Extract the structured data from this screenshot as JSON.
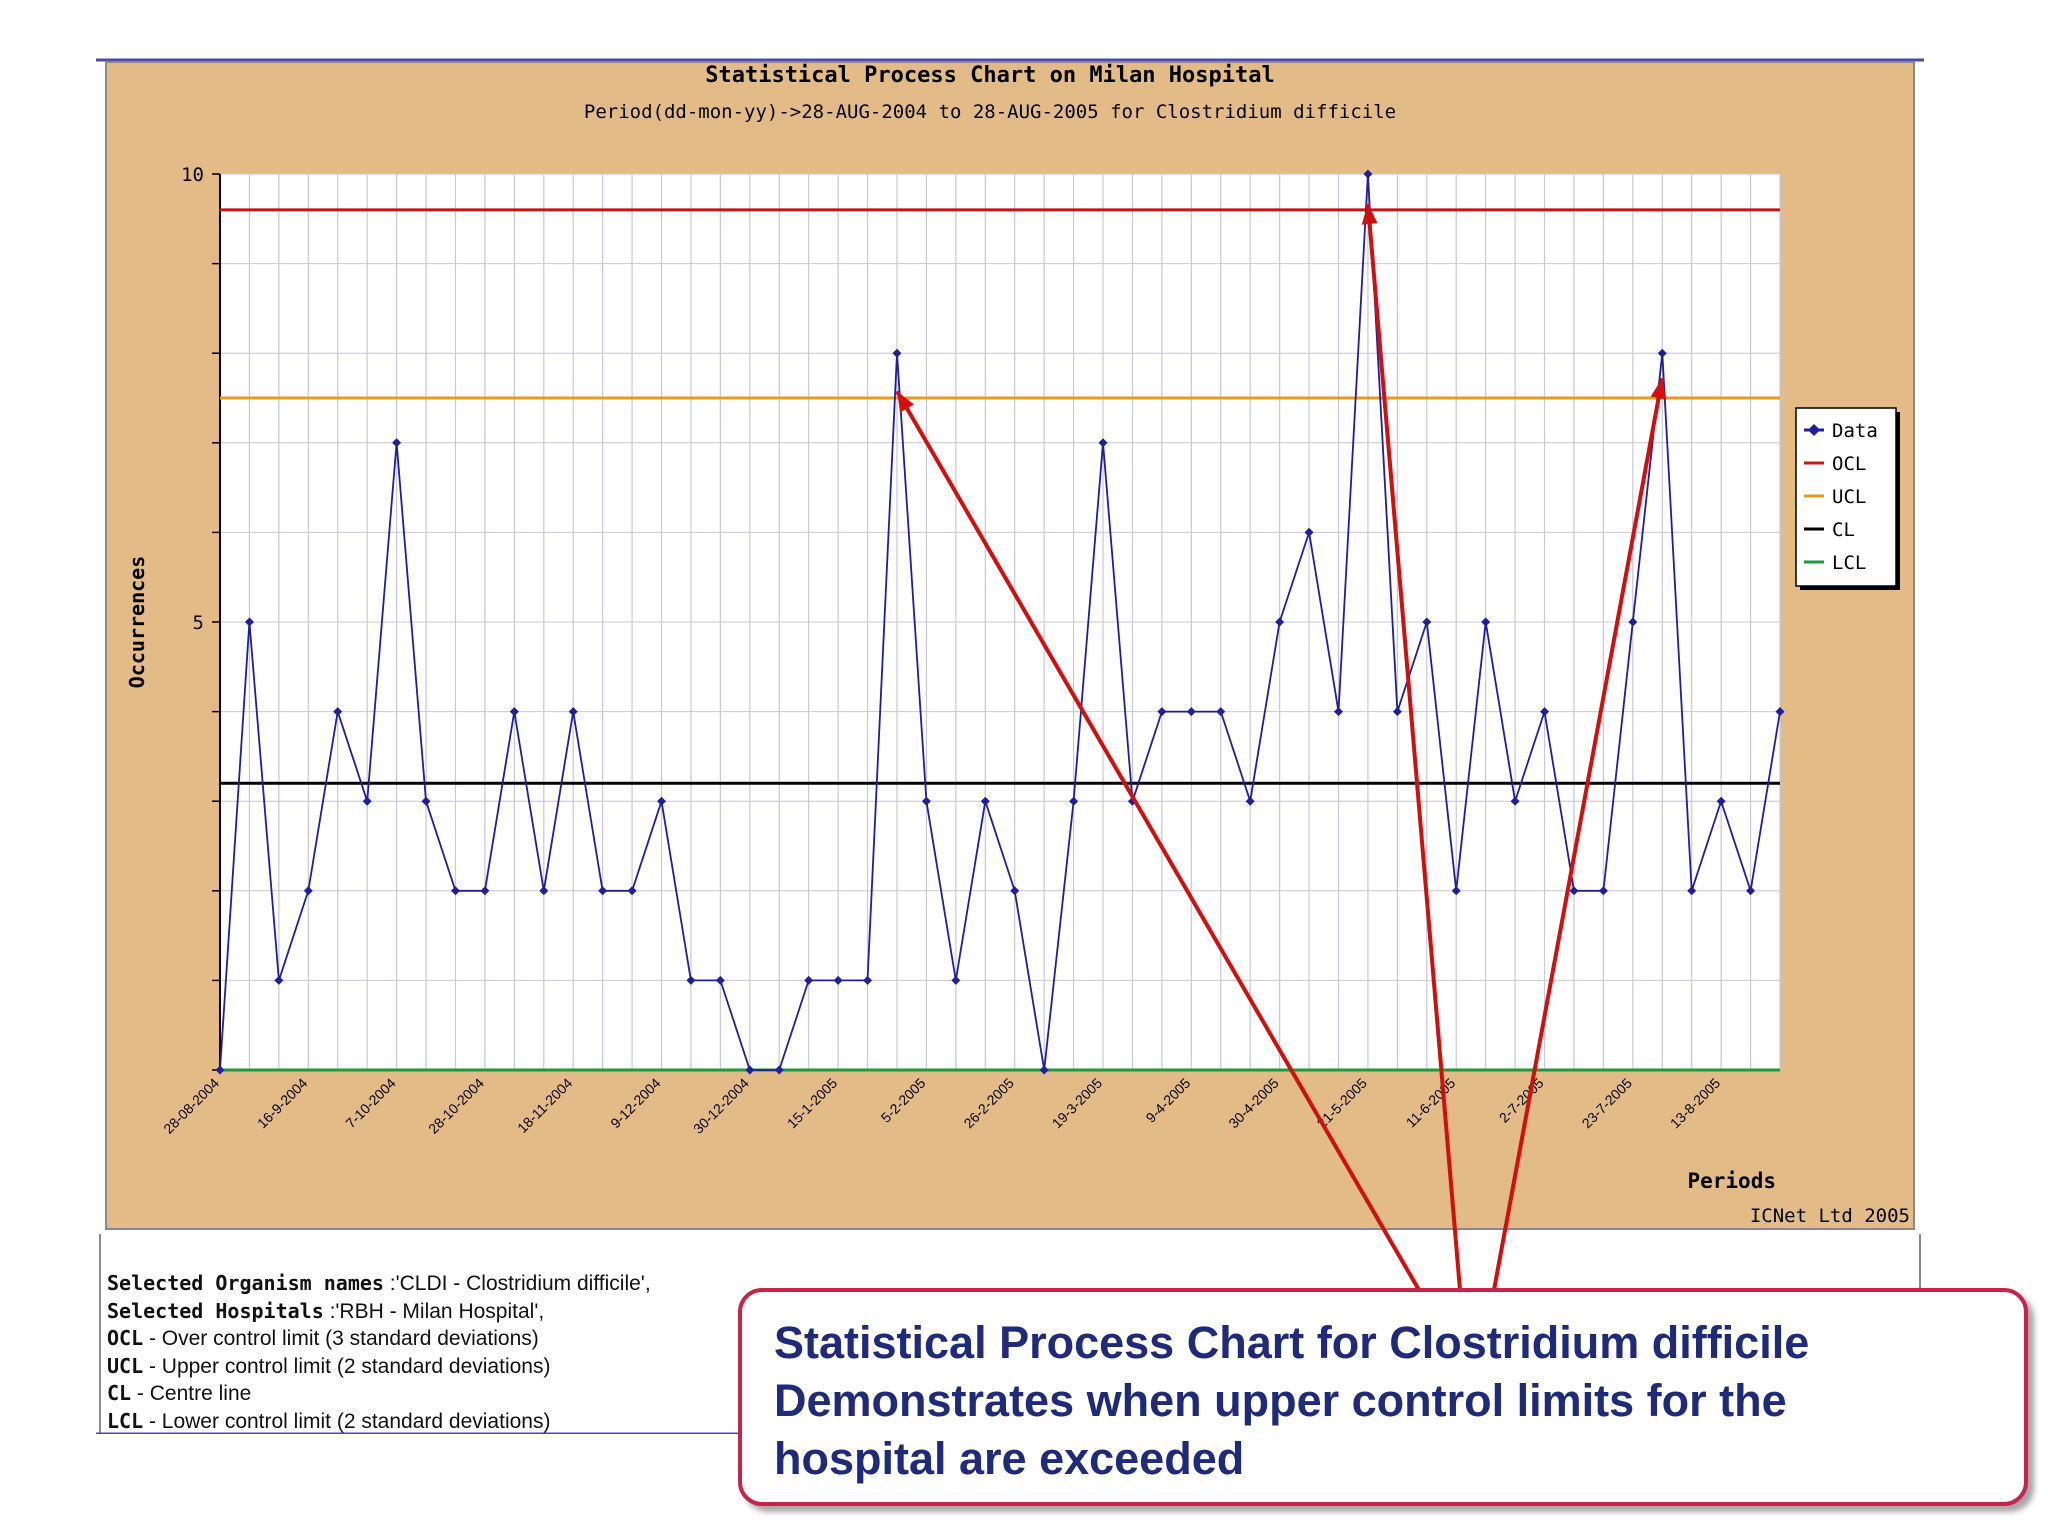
{
  "chart_data": {
    "type": "line",
    "title": "Statistical Process Chart on Milan Hospital",
    "subtitle": "Period(dd-mon-yy)->28-AUG-2004 to 28-AUG-2005 for Clostridium difficile",
    "xlabel": "Periods",
    "ylabel": "Occurrences",
    "ylim": [
      0,
      10
    ],
    "ytick_labels": [
      "10",
      "5"
    ],
    "ytick_values": [
      10,
      5
    ],
    "x_tick_labels": [
      "28-08-2004",
      "16-9-2004",
      "7-10-2004",
      "28-10-2004",
      "18-11-2004",
      "9-12-2004",
      "30-12-2004",
      "15-1-2005",
      "5-2-2005",
      "26-2-2005",
      "19-3-2005",
      "9-4-2005",
      "30-4-2005",
      "21-5-2005",
      "11-6-2005",
      "2-7-2005",
      "23-7-2005",
      "13-8-2005"
    ],
    "x_tick_every": 3,
    "grid": true,
    "legend_position": "right",
    "credit": "ICNet Ltd 2005",
    "series": [
      {
        "name": "Data",
        "color": "#1f1f9a",
        "values": [
          0,
          5,
          1,
          2,
          4,
          3,
          7,
          3,
          2,
          2,
          4,
          2,
          4,
          2,
          2,
          3,
          1,
          1,
          0,
          0,
          1,
          1,
          1,
          8,
          3,
          1,
          3,
          2,
          0,
          3,
          7,
          3,
          4,
          4,
          4,
          3,
          5,
          6,
          4,
          10,
          4,
          5,
          2,
          5,
          3,
          4,
          2,
          2,
          5,
          8,
          2,
          3,
          2,
          4
        ]
      },
      {
        "name": "OCL",
        "color": "#c81414",
        "value": 9.6
      },
      {
        "name": "UCL",
        "color": "#e69a1e",
        "value": 7.5
      },
      {
        "name": "CL",
        "color": "#000000",
        "value": 3.2
      },
      {
        "name": "LCL",
        "color": "#1e9a3c",
        "value": 0
      }
    ],
    "colors": {
      "panel_bg": "#e3bb87",
      "plot_bg": "#ffffff",
      "grid": "#c8c8d8",
      "arrow": "#d20f0f"
    }
  },
  "notes": [
    {
      "key": "Selected Organism names",
      "text": " :'CLDI - Clostridium difficile',"
    },
    {
      "key": "Selected Hospitals",
      "text": " :'RBH - Milan Hospital',"
    },
    {
      "key": "OCL",
      "text": " - Over control limit (3 standard deviations)"
    },
    {
      "key": "UCL",
      "text": " - Upper control limit (2 standard deviations)"
    },
    {
      "key": "CL",
      "text": " - Centre line"
    },
    {
      "key": "LCL",
      "text": " - Lower control limit (2 standard deviations)"
    }
  ],
  "callout": {
    "lines": [
      "Statistical Process Chart  for Clostridium difficile",
      "Demonstrates when upper control limits for the",
      "hospital are exceeded"
    ],
    "border_color": "#c8234a",
    "text_color": "#1f2a7a"
  }
}
